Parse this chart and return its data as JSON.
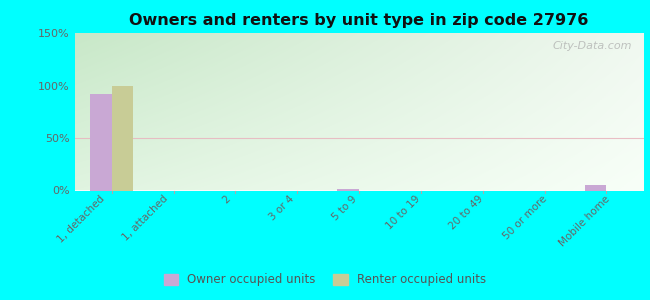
{
  "title": "Owners and renters by unit type in zip code 27976",
  "categories": [
    "1, detached",
    "1, attached",
    "2",
    "3 or 4",
    "5 to 9",
    "10 to 19",
    "20 to 49",
    "50 or more",
    "Mobile home"
  ],
  "owner_values": [
    92,
    0,
    0,
    0,
    1,
    0,
    0,
    0,
    5
  ],
  "renter_values": [
    100,
    0,
    0,
    0,
    0,
    0,
    0,
    0,
    0
  ],
  "owner_color": "#c9a8d4",
  "renter_color": "#c8cc96",
  "ylim": [
    0,
    150
  ],
  "yticks": [
    0,
    50,
    100,
    150
  ],
  "ytick_labels": [
    "0%",
    "50%",
    "100%",
    "150%"
  ],
  "background_color": "#00ffff",
  "plot_bg_topleft": "#c8e8c8",
  "plot_bg_topright": "#e8f4e8",
  "plot_bg_bottom": "#f0faf0",
  "grid50_color": "#e8b8c0",
  "legend_owner": "Owner occupied units",
  "legend_renter": "Renter occupied units",
  "watermark": "City-Data.com",
  "bar_width": 0.35
}
